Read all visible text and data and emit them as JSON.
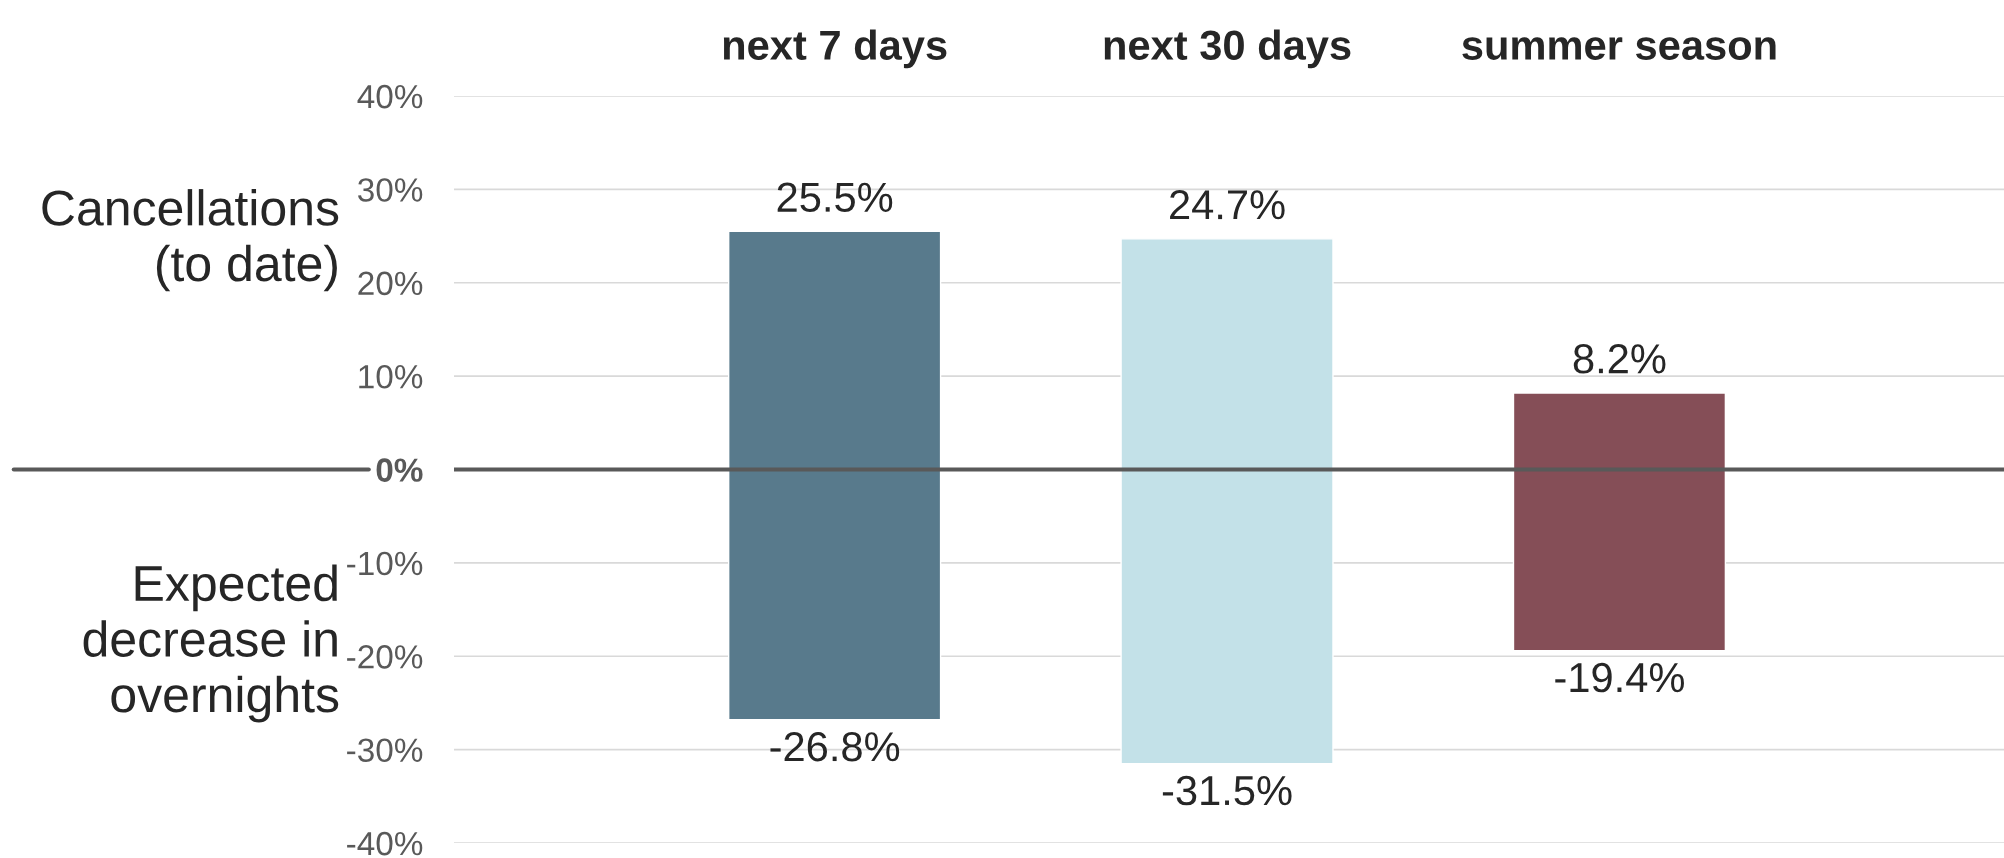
{
  "chart_data": {
    "type": "bar",
    "categories": [
      "next 7 days",
      "next 30 days",
      "summer season"
    ],
    "series": [
      {
        "colors": [
          "#587a8c",
          "#c3e1e8",
          "#854e57"
        ],
        "values": [
          25.5,
          24.7,
          8.2
        ],
        "value_labels": [
          "25.5%",
          "24.7%",
          "8.2%"
        ]
      },
      {
        "colors": [
          "#587a8c",
          "#c3e1e8",
          "#854e57"
        ],
        "values": [
          -26.8,
          -31.5,
          -19.4
        ],
        "value_labels": [
          "-26.8%",
          "-31.5%",
          "-19.4%"
        ]
      }
    ],
    "ylim": [
      -40,
      40
    ],
    "yticks": [
      {
        "value": -40,
        "label": "-40%"
      },
      {
        "value": -30,
        "label": "-30%"
      },
      {
        "value": -20,
        "label": "-20%"
      },
      {
        "value": -10,
        "label": "-10%"
      },
      {
        "value": 0,
        "label": "0%"
      },
      {
        "value": 10,
        "label": "10%"
      },
      {
        "value": 20,
        "label": "20%"
      },
      {
        "value": 30,
        "label": "30%"
      },
      {
        "value": 40,
        "label": "40%"
      }
    ],
    "ref_lines": [
      {
        "axis": "y",
        "value": 0,
        "color": "#595959"
      }
    ],
    "annotations": [
      "Cancellations\n(to date)",
      "Expected\ndecrease in\novernights"
    ],
    "grid": "y",
    "legend": false,
    "stacked": true
  }
}
